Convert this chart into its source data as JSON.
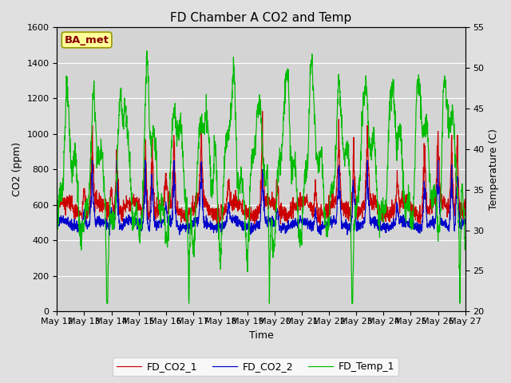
{
  "title": "FD Chamber A CO2 and Temp",
  "xlabel": "Time",
  "ylabel_left": "CO2 (ppm)",
  "ylabel_right": "Temperature (C)",
  "ylim_left": [
    0,
    1600
  ],
  "ylim_right": [
    20,
    55
  ],
  "yticks_left": [
    0,
    200,
    400,
    600,
    800,
    1000,
    1200,
    1400,
    1600
  ],
  "yticks_right": [
    20,
    25,
    30,
    35,
    40,
    45,
    50,
    55
  ],
  "xtick_labels": [
    "May 12",
    "May 13",
    "May 14",
    "May 15",
    "May 16",
    "May 17",
    "May 18",
    "May 19",
    "May 20",
    "May 21",
    "May 22",
    "May 23",
    "May 24",
    "May 25",
    "May 26",
    "May 27"
  ],
  "legend_labels": [
    "FD_CO2_1",
    "FD_CO2_2",
    "FD_Temp_1"
  ],
  "line_colors": [
    "#cc0000",
    "#0000cc",
    "#00bb00"
  ],
  "annotation_text": "BA_met",
  "annotation_bbox_facecolor": "#ffff99",
  "annotation_bbox_edgecolor": "#999900",
  "annotation_text_color": "#880000",
  "background_color": "#e0e0e0",
  "plot_bg_color": "#d4d4d4",
  "grid_color": "#ffffff",
  "title_fontsize": 11,
  "axis_label_fontsize": 9,
  "tick_fontsize": 8,
  "legend_fontsize": 9
}
